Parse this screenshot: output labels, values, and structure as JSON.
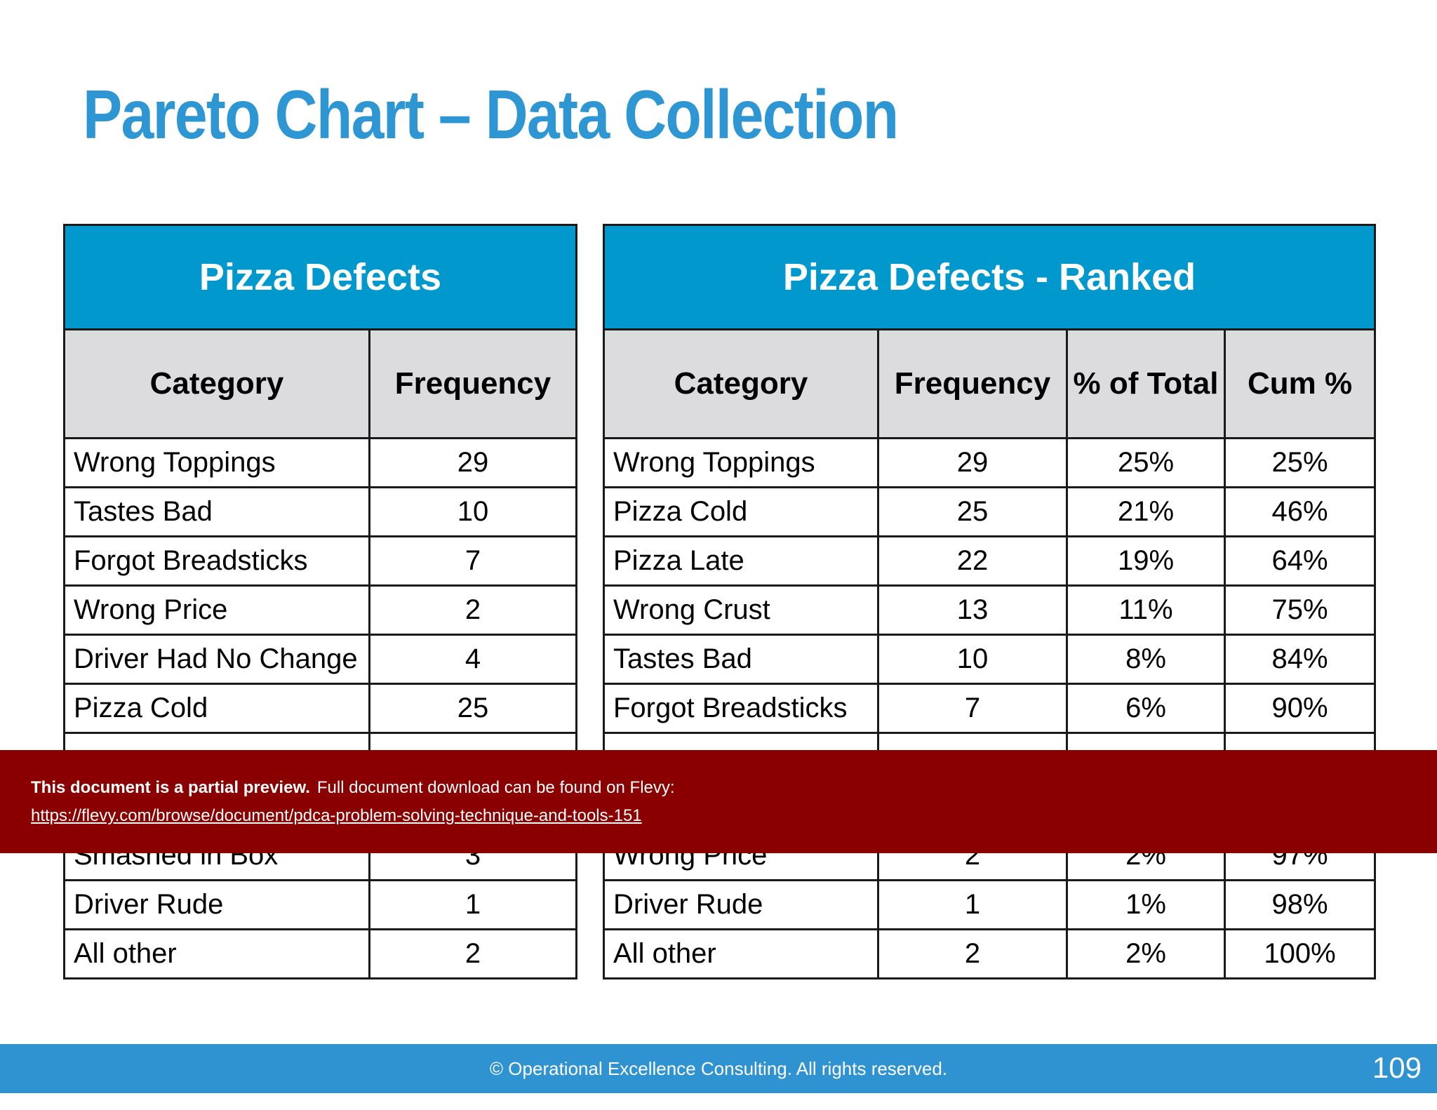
{
  "slide": {
    "title": "Pareto Chart – Data Collection",
    "page_number": "109",
    "footer": "© Operational Excellence Consulting.  All rights reserved."
  },
  "left_table": {
    "title": "Pizza Defects",
    "headers": [
      "Category",
      "Frequency"
    ],
    "rows": [
      [
        "Wrong Toppings",
        "29"
      ],
      [
        "Tastes Bad",
        "10"
      ],
      [
        "Forgot Breadsticks",
        "7"
      ],
      [
        "Wrong Price",
        "2"
      ],
      [
        "Driver Had No Change",
        "4"
      ],
      [
        "Pizza Cold",
        "25"
      ],
      [
        "",
        ""
      ],
      [
        "",
        ""
      ],
      [
        "Smashed in Box",
        "3"
      ],
      [
        "Driver Rude",
        "1"
      ],
      [
        "All other",
        "2"
      ]
    ]
  },
  "right_table": {
    "title": "Pizza Defects - Ranked",
    "headers": [
      "Category",
      "Frequency",
      "% of Total",
      "Cum %"
    ],
    "rows": [
      [
        "Wrong Toppings",
        "29",
        "25%",
        "25%"
      ],
      [
        "Pizza Cold",
        "25",
        "21%",
        "46%"
      ],
      [
        "Pizza Late",
        "22",
        "19%",
        "64%"
      ],
      [
        "Wrong Crust",
        "13",
        "11%",
        "75%"
      ],
      [
        "Tastes Bad",
        "10",
        "8%",
        "84%"
      ],
      [
        "Forgot Breadsticks",
        "7",
        "6%",
        "90%"
      ],
      [
        "",
        "",
        "",
        ""
      ],
      [
        "",
        "",
        "",
        ""
      ],
      [
        "Wrong Price",
        "2",
        "2%",
        "97%"
      ],
      [
        "Driver Rude",
        "1",
        "1%",
        "98%"
      ],
      [
        "All other",
        "2",
        "2%",
        "100%"
      ]
    ]
  },
  "preview_banner": {
    "bold_text": "This document is a partial preview.",
    "text": "Full document download can be found on Flevy:",
    "link": "https://flevy.com/browse/document/pdca-problem-solving-technique-and-tools-151"
  }
}
